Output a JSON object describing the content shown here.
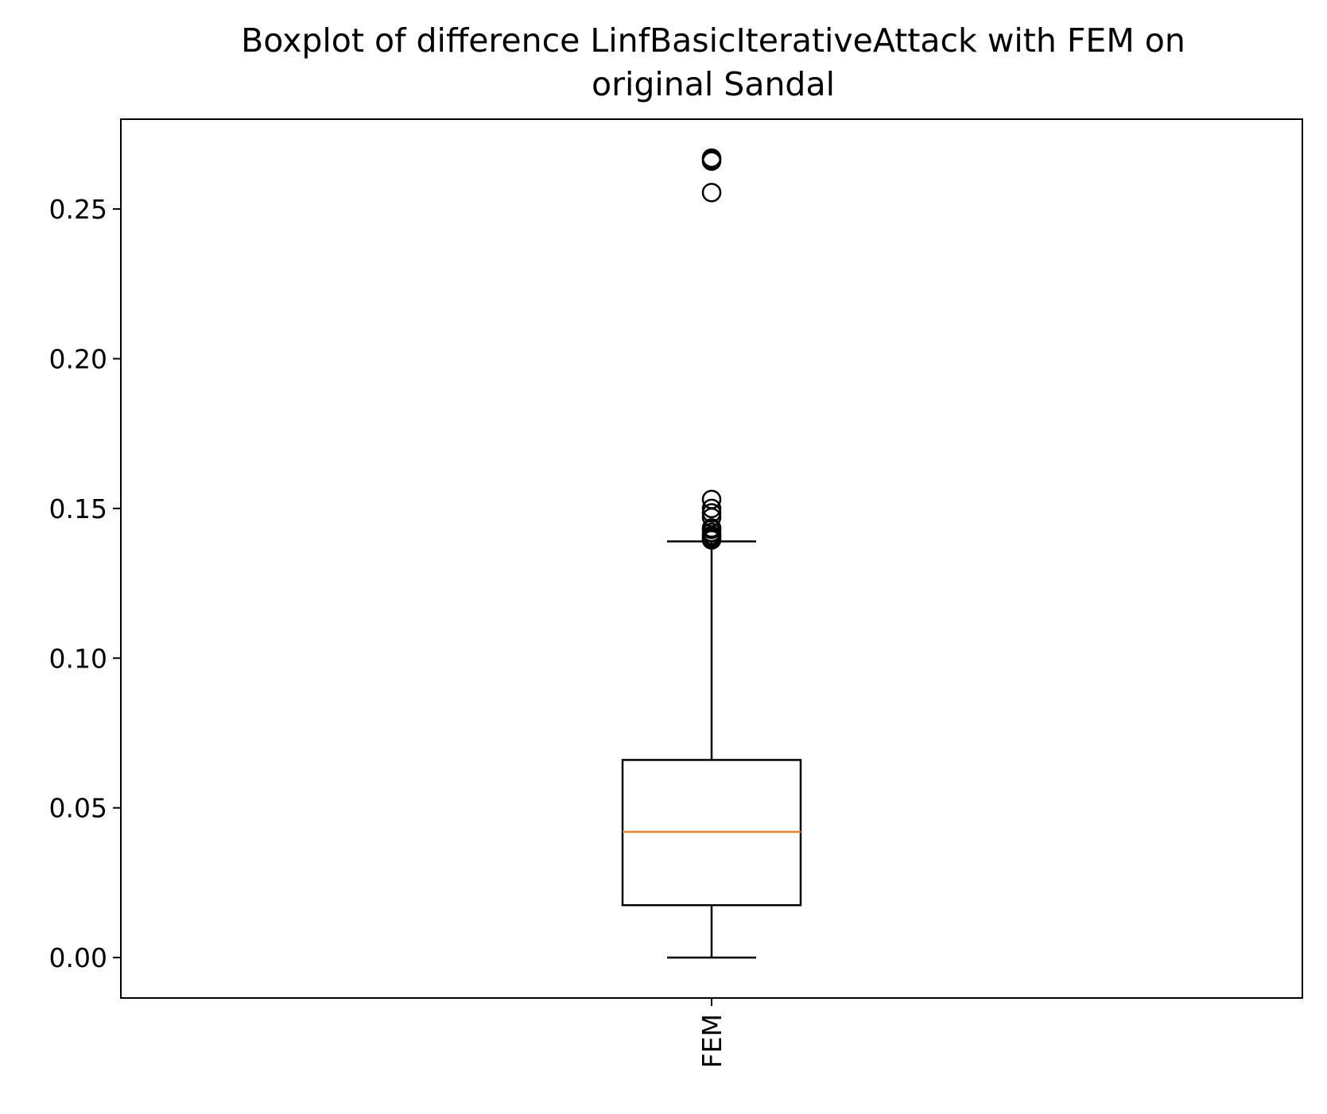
{
  "chart_data": {
    "type": "boxplot",
    "title": "Boxplot of difference LinfBasicIterativeAttack with FEM on original Sandal",
    "title_lines": [
      "Boxplot of difference LinfBasicIterativeAttack with FEM on",
      "original Sandal"
    ],
    "xlabel": "",
    "ylabel": "",
    "ylim": [
      -0.0135,
      0.28
    ],
    "yticks": [
      0.0,
      0.05,
      0.1,
      0.15,
      0.2,
      0.25
    ],
    "ytick_labels": [
      "0.00",
      "0.05",
      "0.10",
      "0.15",
      "0.20",
      "0.25"
    ],
    "categories": [
      "FEM"
    ],
    "grid": false,
    "boxes": [
      {
        "name": "FEM",
        "whisker_low": 0.0,
        "q1": 0.0175,
        "median": 0.042,
        "q3": 0.066,
        "whisker_high": 0.139,
        "outliers": [
          0.1395,
          0.14,
          0.1405,
          0.141,
          0.142,
          0.143,
          0.1435,
          0.147,
          0.1485,
          0.15,
          0.153,
          0.2555,
          0.266,
          0.2665,
          0.267
        ]
      }
    ],
    "colors": {
      "box": "#000000",
      "median": "#ff7f0e",
      "outlier": "#000000",
      "axes": "#000000"
    }
  }
}
